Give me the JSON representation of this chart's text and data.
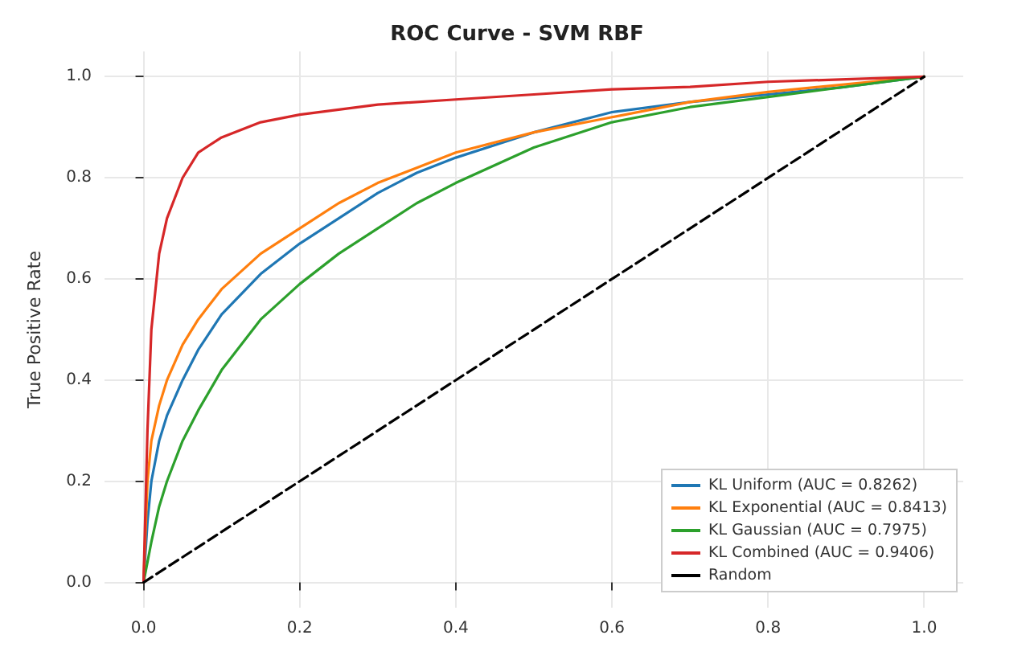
{
  "chart_data": {
    "type": "line",
    "title": "ROC Curve - SVM RBF",
    "ylabel": "True Positive Rate",
    "xlim": [
      -0.05,
      1.05
    ],
    "ylim": [
      -0.05,
      1.05
    ],
    "xticks": [
      {
        "value": 0,
        "label": "0.0"
      },
      0.2,
      0.4,
      0.6,
      0.8,
      {
        "value": 1,
        "label": "1.0"
      }
    ],
    "yticks": [
      {
        "value": 0,
        "label": "0.0"
      },
      0.2,
      0.4,
      0.6,
      0.8,
      {
        "value": 1,
        "label": "1.0"
      }
    ],
    "grid": true,
    "legend": "bottom right",
    "marker": "none",
    "series": [
      {
        "name": "KL Uniform (AUC = 0.8262)",
        "color": "#1f77b4",
        "x": [
          0,
          0.005,
          0.01,
          0.02,
          0.03,
          0.05,
          0.07,
          0.1,
          0.15,
          0.2,
          0.25,
          0.3,
          0.35,
          0.4,
          0.5,
          0.6,
          0.7,
          0.8,
          0.9,
          1
        ],
        "values": [
          0,
          0.12,
          0.2,
          0.28,
          0.33,
          0.4,
          0.46,
          0.53,
          0.61,
          0.67,
          0.72,
          0.77,
          0.81,
          0.84,
          0.89,
          0.93,
          0.95,
          0.965,
          0.98,
          1
        ]
      },
      {
        "name": "KL Exponential (AUC = 0.8413)",
        "color": "#ff7f0e",
        "x": [
          0,
          0.005,
          0.01,
          0.02,
          0.03,
          0.05,
          0.07,
          0.1,
          0.15,
          0.2,
          0.25,
          0.3,
          0.35,
          0.4,
          0.5,
          0.6,
          0.7,
          0.8,
          0.9,
          1
        ],
        "values": [
          0,
          0.2,
          0.28,
          0.35,
          0.4,
          0.47,
          0.52,
          0.58,
          0.65,
          0.7,
          0.75,
          0.79,
          0.82,
          0.85,
          0.89,
          0.92,
          0.95,
          0.97,
          0.985,
          1
        ]
      },
      {
        "name": "KL Gaussian (AUC = 0.7975)",
        "color": "#2ca02c",
        "x": [
          0,
          0.01,
          0.02,
          0.03,
          0.05,
          0.07,
          0.1,
          0.15,
          0.2,
          0.25,
          0.3,
          0.35,
          0.4,
          0.5,
          0.6,
          0.7,
          0.8,
          0.9,
          1
        ],
        "values": [
          0,
          0.08,
          0.15,
          0.2,
          0.28,
          0.34,
          0.42,
          0.52,
          0.59,
          0.65,
          0.7,
          0.75,
          0.79,
          0.86,
          0.91,
          0.94,
          0.96,
          0.98,
          1
        ]
      },
      {
        "name": "KL Combined (AUC = 0.9406)",
        "color": "#d62728",
        "x": [
          0,
          0.005,
          0.01,
          0.02,
          0.03,
          0.05,
          0.07,
          0.1,
          0.15,
          0.2,
          0.3,
          0.4,
          0.5,
          0.6,
          0.7,
          0.8,
          0.9,
          1
        ],
        "values": [
          0,
          0.3,
          0.5,
          0.65,
          0.72,
          0.8,
          0.85,
          0.88,
          0.91,
          0.925,
          0.945,
          0.955,
          0.965,
          0.975,
          0.98,
          0.99,
          0.995,
          1
        ]
      },
      {
        "name": "Random",
        "color": "#000000",
        "line_style": "dashed",
        "x": [
          0,
          1
        ],
        "values": [
          0,
          1
        ]
      }
    ]
  }
}
